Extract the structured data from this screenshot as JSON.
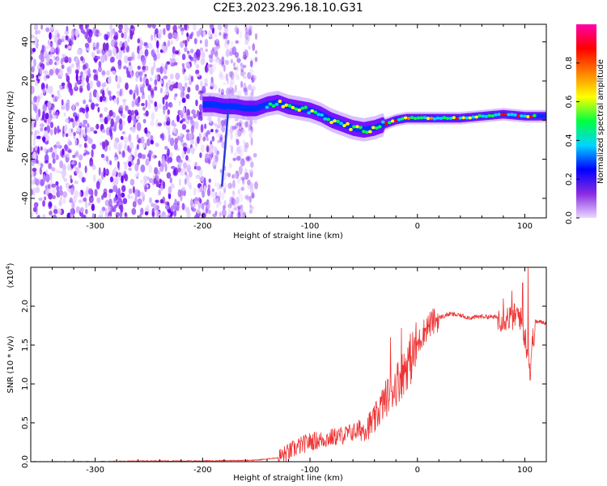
{
  "page": {
    "title": "C2E3.2023.296.18.10.G31"
  },
  "chart_data": [
    {
      "type": "heatmap",
      "xlabel": "Height of straight line (km)",
      "ylabel": "Frequency (Hz)",
      "xlim": [
        -360,
        120
      ],
      "ylim": [
        -50,
        49
      ],
      "xticks": [
        -300,
        -200,
        -100,
        0,
        100
      ],
      "yticks": [
        -40,
        -20,
        0,
        20,
        40
      ],
      "colorbar": {
        "label": "Normalized spectral amplitude",
        "range": [
          0.0,
          1.0
        ],
        "ticks": [
          "0.0",
          "0.2",
          "0.4",
          "0.6",
          "0.8"
        ],
        "colors": [
          "#e9d8ff",
          "#8a2be2",
          "#0000ff",
          "#00d5ff",
          "#00ff40",
          "#ffff00",
          "#ff8000",
          "#ff0000",
          "#ff00aa"
        ]
      },
      "signal_ridge": {
        "x": [
          -200,
          -190,
          -180,
          -170,
          -160,
          -150,
          -140,
          -130,
          -120,
          -110,
          -100,
          -90,
          -80,
          -70,
          -60,
          -50,
          -40,
          -30,
          -20,
          -10,
          0,
          20,
          40,
          60,
          80,
          100,
          120
        ],
        "y": [
          8,
          8,
          7,
          7,
          6,
          6,
          8,
          9,
          7,
          6,
          5,
          3,
          0,
          -2,
          -4,
          -5,
          -4,
          -2,
          0,
          1,
          1,
          1,
          1,
          2,
          3,
          2,
          2
        ]
      },
      "noise_region": [
        -360,
        -150
      ]
    },
    {
      "type": "line",
      "xlabel": "Height of straight line (km)",
      "ylabel": "SNR (10 * v/v)",
      "yscale_label": "(x10",
      "yscale_exp": "4",
      "yscale_close": ")",
      "xlim": [
        -360,
        120
      ],
      "ylim": [
        0,
        2.5
      ],
      "xticks": [
        -300,
        -200,
        -100,
        0,
        100
      ],
      "yticks": [
        0.0,
        0.5,
        1.0,
        1.5,
        2.0
      ],
      "color": "#ee3333",
      "series": [
        {
          "x": [
            -360,
            -300,
            -250,
            -200,
            -150,
            -130,
            -120,
            -110,
            -100,
            -90,
            -80,
            -70,
            -60,
            -50,
            -40,
            -35,
            -30,
            -25,
            -20,
            -15,
            -10,
            -5,
            0,
            5,
            10,
            20,
            30,
            40,
            50,
            60,
            70,
            80,
            90,
            95,
            100,
            105,
            110,
            120
          ],
          "values": [
            0.0,
            0.0,
            0.01,
            0.01,
            0.02,
            0.05,
            0.12,
            0.2,
            0.26,
            0.28,
            0.31,
            0.34,
            0.38,
            0.42,
            0.52,
            0.68,
            0.8,
            0.9,
            1.0,
            1.1,
            1.25,
            1.35,
            1.5,
            1.65,
            1.75,
            1.85,
            1.9,
            1.88,
            1.85,
            1.87,
            1.86,
            1.85,
            1.86,
            1.9,
            1.6,
            1.3,
            1.8,
            1.79
          ],
          "spikes": [
            {
              "x": -25,
              "value": 1.6
            },
            {
              "x": -15,
              "value": 1.72
            },
            {
              "x": 80,
              "value": 2.1
            },
            {
              "x": 88,
              "value": 2.2
            },
            {
              "x": 98,
              "value": 2.3
            },
            {
              "x": 103,
              "value": 2.5
            },
            {
              "x": 105,
              "value": 1.05
            }
          ]
        }
      ]
    }
  ]
}
